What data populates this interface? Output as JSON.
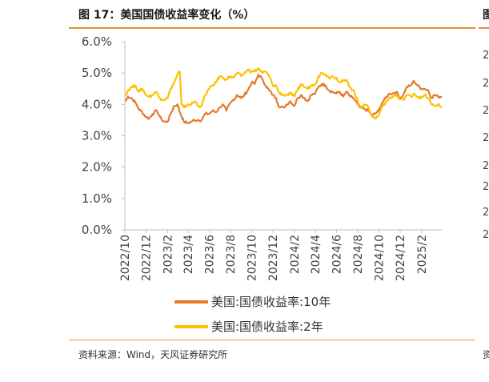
{
  "figure": {
    "title": "图 17：美国国债收益率变化（%）",
    "source": "资料来源：Wind，天风证券研究所",
    "next_panel_title_glyph": "图",
    "next_panel_ticks": [
      "2",
      "2",
      "2",
      "2",
      "2",
      "2",
      "2",
      "2"
    ],
    "next_panel_source_glyph": "资"
  },
  "colors": {
    "rule": "#e6923a",
    "series_10y": "#e37b2e",
    "series_2y": "#ffc000",
    "axis": "#bfbfbf"
  },
  "chart_data": {
    "type": "line",
    "title": "",
    "xlabel": "",
    "ylabel": "",
    "ylim": [
      0,
      6
    ],
    "yticks": [
      "0.0%",
      "1.0%",
      "2.0%",
      "3.0%",
      "4.0%",
      "5.0%",
      "6.0%"
    ],
    "x_range": [
      "2022-10",
      "2025-03"
    ],
    "xticks": [
      "2022/10",
      "2022/12",
      "2023/2",
      "2023/4",
      "2023/6",
      "2023/8",
      "2023/10",
      "2023/12",
      "2024/2",
      "2024/4",
      "2024/6",
      "2024/8",
      "2024/10",
      "2024/12",
      "2025/2"
    ],
    "legend_position": "bottom",
    "series": [
      {
        "name": "美国:国债收益率:10年",
        "color": "#e37b2e",
        "points": [
          [
            "2022-10-03",
            4.1
          ],
          [
            "2022-10-10",
            4.25
          ],
          [
            "2022-10-20",
            4.2
          ],
          [
            "2022-11-01",
            4.05
          ],
          [
            "2022-11-10",
            3.85
          ],
          [
            "2022-11-20",
            3.75
          ],
          [
            "2022-12-01",
            3.6
          ],
          [
            "2022-12-10",
            3.55
          ],
          [
            "2022-12-20",
            3.7
          ],
          [
            "2023-01-01",
            3.8
          ],
          [
            "2023-01-10",
            3.6
          ],
          [
            "2023-01-20",
            3.45
          ],
          [
            "2023-02-01",
            3.45
          ],
          [
            "2023-02-10",
            3.7
          ],
          [
            "2023-02-20",
            3.95
          ],
          [
            "2023-03-01",
            4.0
          ],
          [
            "2023-03-10",
            3.7
          ],
          [
            "2023-03-20",
            3.45
          ],
          [
            "2023-04-01",
            3.4
          ],
          [
            "2023-04-10",
            3.45
          ],
          [
            "2023-04-20",
            3.5
          ],
          [
            "2023-05-01",
            3.5
          ],
          [
            "2023-05-10",
            3.5
          ],
          [
            "2023-05-20",
            3.7
          ],
          [
            "2023-06-01",
            3.7
          ],
          [
            "2023-06-10",
            3.8
          ],
          [
            "2023-06-20",
            3.75
          ],
          [
            "2023-07-01",
            3.9
          ],
          [
            "2023-07-10",
            4.0
          ],
          [
            "2023-07-20",
            3.8
          ],
          [
            "2023-08-01",
            4.05
          ],
          [
            "2023-08-10",
            4.15
          ],
          [
            "2023-08-20",
            4.3
          ],
          [
            "2023-09-01",
            4.2
          ],
          [
            "2023-09-10",
            4.3
          ],
          [
            "2023-09-20",
            4.45
          ],
          [
            "2023-10-01",
            4.7
          ],
          [
            "2023-10-10",
            4.65
          ],
          [
            "2023-10-20",
            4.95
          ],
          [
            "2023-11-01",
            4.8
          ],
          [
            "2023-11-10",
            4.6
          ],
          [
            "2023-11-20",
            4.45
          ],
          [
            "2023-12-01",
            4.3
          ],
          [
            "2023-12-10",
            4.2
          ],
          [
            "2023-12-20",
            3.9
          ],
          [
            "2024-01-01",
            3.9
          ],
          [
            "2024-01-10",
            4.0
          ],
          [
            "2024-01-20",
            4.1
          ],
          [
            "2024-02-01",
            3.95
          ],
          [
            "2024-02-10",
            4.2
          ],
          [
            "2024-02-20",
            4.3
          ],
          [
            "2024-03-01",
            4.2
          ],
          [
            "2024-03-10",
            4.1
          ],
          [
            "2024-03-20",
            4.3
          ],
          [
            "2024-04-01",
            4.35
          ],
          [
            "2024-04-10",
            4.55
          ],
          [
            "2024-04-20",
            4.65
          ],
          [
            "2024-05-01",
            4.6
          ],
          [
            "2024-05-10",
            4.45
          ],
          [
            "2024-05-20",
            4.4
          ],
          [
            "2024-06-01",
            4.35
          ],
          [
            "2024-06-10",
            4.4
          ],
          [
            "2024-06-20",
            4.25
          ],
          [
            "2024-07-01",
            4.4
          ],
          [
            "2024-07-10",
            4.25
          ],
          [
            "2024-07-20",
            4.2
          ],
          [
            "2024-08-01",
            4.0
          ],
          [
            "2024-08-10",
            3.9
          ],
          [
            "2024-08-20",
            3.85
          ],
          [
            "2024-09-01",
            3.8
          ],
          [
            "2024-09-10",
            3.65
          ],
          [
            "2024-09-20",
            3.7
          ],
          [
            "2024-10-01",
            3.8
          ],
          [
            "2024-10-10",
            4.05
          ],
          [
            "2024-10-20",
            4.2
          ],
          [
            "2024-11-01",
            4.35
          ],
          [
            "2024-11-10",
            4.35
          ],
          [
            "2024-11-20",
            4.4
          ],
          [
            "2024-12-01",
            4.2
          ],
          [
            "2024-12-10",
            4.3
          ],
          [
            "2024-12-20",
            4.55
          ],
          [
            "2025-01-01",
            4.6
          ],
          [
            "2025-01-10",
            4.75
          ],
          [
            "2025-01-20",
            4.6
          ],
          [
            "2025-02-01",
            4.5
          ],
          [
            "2025-02-10",
            4.5
          ],
          [
            "2025-02-20",
            4.45
          ],
          [
            "2025-03-01",
            4.2
          ],
          [
            "2025-03-10",
            4.3
          ],
          [
            "2025-03-20",
            4.25
          ],
          [
            "2025-03-31",
            4.25
          ]
        ]
      },
      {
        "name": "美国:国债收益率:2年",
        "color": "#ffc000",
        "points": [
          [
            "2022-10-03",
            4.3
          ],
          [
            "2022-10-10",
            4.45
          ],
          [
            "2022-10-20",
            4.55
          ],
          [
            "2022-11-01",
            4.6
          ],
          [
            "2022-11-10",
            4.4
          ],
          [
            "2022-11-20",
            4.5
          ],
          [
            "2022-12-01",
            4.3
          ],
          [
            "2022-12-10",
            4.25
          ],
          [
            "2022-12-20",
            4.3
          ],
          [
            "2023-01-01",
            4.4
          ],
          [
            "2023-01-10",
            4.2
          ],
          [
            "2023-01-20",
            4.15
          ],
          [
            "2023-02-01",
            4.2
          ],
          [
            "2023-02-10",
            4.5
          ],
          [
            "2023-02-20",
            4.7
          ],
          [
            "2023-03-01",
            4.95
          ],
          [
            "2023-03-08",
            5.05
          ],
          [
            "2023-03-13",
            4.0
          ],
          [
            "2023-03-20",
            3.9
          ],
          [
            "2023-04-01",
            4.0
          ],
          [
            "2023-04-10",
            4.0
          ],
          [
            "2023-04-20",
            4.1
          ],
          [
            "2023-05-01",
            3.95
          ],
          [
            "2023-05-10",
            3.95
          ],
          [
            "2023-05-20",
            4.3
          ],
          [
            "2023-06-01",
            4.5
          ],
          [
            "2023-06-10",
            4.6
          ],
          [
            "2023-06-20",
            4.7
          ],
          [
            "2023-07-01",
            4.9
          ],
          [
            "2023-07-10",
            4.85
          ],
          [
            "2023-07-20",
            4.8
          ],
          [
            "2023-08-01",
            4.9
          ],
          [
            "2023-08-10",
            4.85
          ],
          [
            "2023-08-20",
            5.0
          ],
          [
            "2023-09-01",
            4.9
          ],
          [
            "2023-09-10",
            5.0
          ],
          [
            "2023-09-20",
            5.1
          ],
          [
            "2023-10-01",
            5.05
          ],
          [
            "2023-10-10",
            5.05
          ],
          [
            "2023-10-20",
            5.15
          ],
          [
            "2023-11-01",
            5.0
          ],
          [
            "2023-11-10",
            5.05
          ],
          [
            "2023-11-20",
            4.9
          ],
          [
            "2023-12-01",
            4.6
          ],
          [
            "2023-12-10",
            4.6
          ],
          [
            "2023-12-20",
            4.35
          ],
          [
            "2024-01-01",
            4.3
          ],
          [
            "2024-01-10",
            4.3
          ],
          [
            "2024-01-20",
            4.35
          ],
          [
            "2024-02-01",
            4.25
          ],
          [
            "2024-02-10",
            4.45
          ],
          [
            "2024-02-20",
            4.65
          ],
          [
            "2024-03-01",
            4.55
          ],
          [
            "2024-03-10",
            4.5
          ],
          [
            "2024-03-20",
            4.6
          ],
          [
            "2024-04-01",
            4.65
          ],
          [
            "2024-04-10",
            4.9
          ],
          [
            "2024-04-20",
            5.0
          ],
          [
            "2024-05-01",
            4.95
          ],
          [
            "2024-05-10",
            4.85
          ],
          [
            "2024-05-20",
            4.9
          ],
          [
            "2024-06-01",
            4.85
          ],
          [
            "2024-06-10",
            4.7
          ],
          [
            "2024-06-20",
            4.75
          ],
          [
            "2024-07-01",
            4.75
          ],
          [
            "2024-07-10",
            4.55
          ],
          [
            "2024-07-20",
            4.45
          ],
          [
            "2024-08-01",
            4.1
          ],
          [
            "2024-08-05",
            3.9
          ],
          [
            "2024-08-20",
            4.0
          ],
          [
            "2024-09-01",
            3.9
          ],
          [
            "2024-09-10",
            3.65
          ],
          [
            "2024-09-20",
            3.55
          ],
          [
            "2024-10-01",
            3.65
          ],
          [
            "2024-10-10",
            3.95
          ],
          [
            "2024-10-20",
            4.05
          ],
          [
            "2024-11-01",
            4.2
          ],
          [
            "2024-11-10",
            4.25
          ],
          [
            "2024-11-20",
            4.3
          ],
          [
            "2024-12-01",
            4.15
          ],
          [
            "2024-12-10",
            4.15
          ],
          [
            "2024-12-20",
            4.3
          ],
          [
            "2025-01-01",
            4.25
          ],
          [
            "2025-01-10",
            4.35
          ],
          [
            "2025-01-20",
            4.25
          ],
          [
            "2025-02-01",
            4.2
          ],
          [
            "2025-02-10",
            4.3
          ],
          [
            "2025-02-20",
            4.2
          ],
          [
            "2025-03-01",
            4.0
          ],
          [
            "2025-03-10",
            3.95
          ],
          [
            "2025-03-20",
            4.0
          ],
          [
            "2025-03-31",
            3.9
          ]
        ]
      }
    ]
  }
}
